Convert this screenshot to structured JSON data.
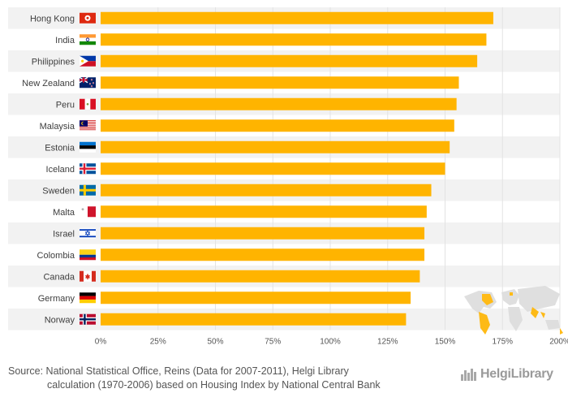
{
  "chart_data": {
    "type": "bar",
    "orientation": "horizontal",
    "categories": [
      "Hong Kong",
      "India",
      "Philippines",
      "New Zealand",
      "Peru",
      "Malaysia",
      "Estonia",
      "Iceland",
      "Sweden",
      "Malta",
      "Israel",
      "Colombia",
      "Canada",
      "Germany",
      "Norway"
    ],
    "values": [
      171,
      168,
      164,
      156,
      155,
      154,
      152,
      150,
      144,
      142,
      141,
      141,
      139,
      135,
      133
    ],
    "xlim": [
      0,
      200
    ],
    "x_ticks": [
      "0%",
      "25%",
      "50%",
      "75%",
      "100%",
      "125%",
      "150%",
      "175%",
      "200%"
    ],
    "bar_color": "#ffb400",
    "grid": true,
    "flags": [
      "hong-kong-flag-icon",
      "india-flag-icon",
      "philippines-flag-icon",
      "new-zealand-flag-icon",
      "peru-flag-icon",
      "malaysia-flag-icon",
      "estonia-flag-icon",
      "iceland-flag-icon",
      "sweden-flag-icon",
      "malta-flag-icon",
      "israel-flag-icon",
      "colombia-flag-icon",
      "canada-flag-icon",
      "germany-flag-icon",
      "norway-flag-icon"
    ]
  },
  "footer": {
    "source_line1": "Source: National Statistical Office, Reins (Data for 2007-2011), Helgi Library",
    "source_line2": "calculation (1970-2006) based on Housing Index by National Central Bank",
    "logo_text": "HelgiLibrary"
  },
  "colors": {
    "bar": "#ffb400",
    "row_band": "#f2f2f2",
    "map_land": "#dcdcdc",
    "map_highlight": "#ffb400"
  }
}
